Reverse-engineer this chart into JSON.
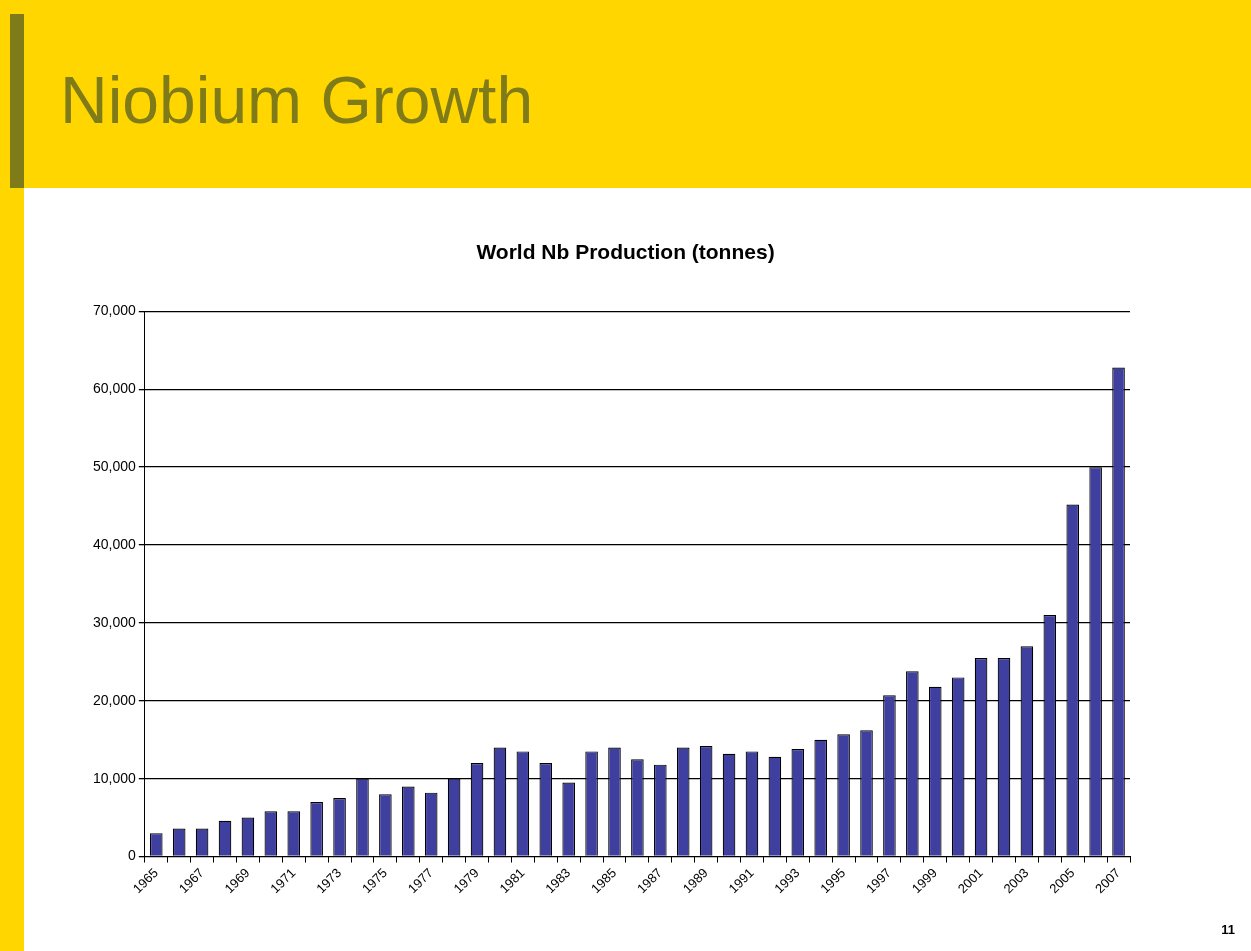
{
  "chart_data": {
    "type": "bar",
    "title": "Niobium Growth",
    "subtitle": "World Nb Production (tonnes)",
    "categories": [
      "1965",
      null,
      "1967",
      null,
      "1969",
      null,
      "1971",
      null,
      "1973",
      null,
      "1975",
      null,
      "1977",
      null,
      "1979",
      null,
      "1981",
      null,
      "1983",
      null,
      "1985",
      null,
      "1987",
      null,
      "1989",
      null,
      "1991",
      null,
      "1993",
      null,
      "1995",
      null,
      "1997",
      null,
      "1999",
      null,
      "2001",
      null,
      "2003",
      null,
      "2005",
      null,
      "2007"
    ],
    "values": [
      3000,
      3600,
      3600,
      4600,
      5000,
      5800,
      5800,
      7000,
      7500,
      10000,
      8000,
      9000,
      8200,
      10000,
      12000,
      14000,
      13500,
      12000,
      9500,
      13500,
      14000,
      12500,
      11800,
      14000,
      14200,
      13200,
      13500,
      12800,
      13800,
      15000,
      15700,
      16200,
      20700,
      23800,
      21800,
      23000,
      25500,
      25500,
      27000,
      31000,
      45200,
      50000,
      62800
    ],
    "color": "#3f3f9f",
    "ylim": [
      0,
      70000
    ],
    "yticks": [
      0,
      {
        "value": 10000,
        "label": "10,000"
      },
      {
        "value": 20000,
        "label": "20,000"
      },
      {
        "value": 30000,
        "label": "30,000"
      },
      {
        "value": 40000,
        "label": "40,000"
      },
      {
        "value": 50000,
        "label": "50,000"
      },
      {
        "value": 60000,
        "label": "60,000"
      },
      {
        "value": 70000,
        "label": "70,000"
      }
    ],
    "grid": "y",
    "legend": false,
    "annotations": [
      "11"
    ]
  }
}
